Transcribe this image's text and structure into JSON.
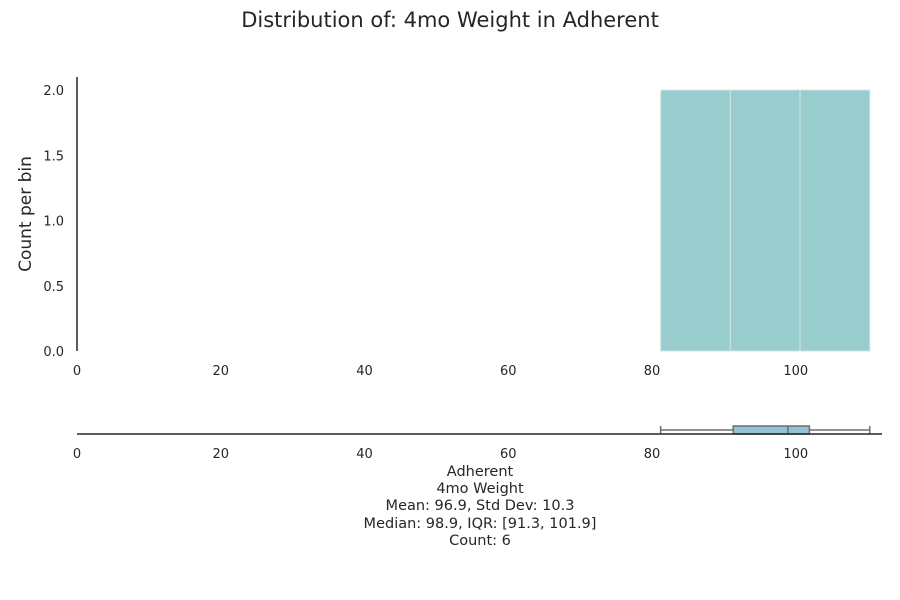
{
  "chart_data": {
    "type": "histogram",
    "title": "Distribution of: 4mo Weight in Adherent",
    "ylabel": "Count per bin",
    "xlim": [
      0,
      112
    ],
    "ylim": [
      0,
      2.1
    ],
    "x_ticks": [
      0,
      20,
      40,
      60,
      80,
      100
    ],
    "y_ticks": [
      0.0,
      0.5,
      1.0,
      1.5,
      2.0
    ],
    "bins": [
      {
        "start": 81.2,
        "end": 90.9,
        "count": 2
      },
      {
        "start": 90.9,
        "end": 100.6,
        "count": 2
      },
      {
        "start": 100.6,
        "end": 110.3,
        "count": 2
      }
    ],
    "boxplot": {
      "min": 81.2,
      "q1": 91.3,
      "median": 98.9,
      "q3": 101.9,
      "max": 110.3
    },
    "colors": {
      "bar": "#99cccd",
      "bar_edge": "#cfe6e6",
      "box_fill": "#92c2d6",
      "box_edge": "#6f6f6f",
      "axis": "#262626"
    },
    "stats_lines": [
      "Adherent",
      "4mo Weight",
      "Mean: 96.9, Std Dev: 10.3",
      "Median: 98.9, IQR: [91.3, 101.9]",
      "Count: 6"
    ]
  }
}
